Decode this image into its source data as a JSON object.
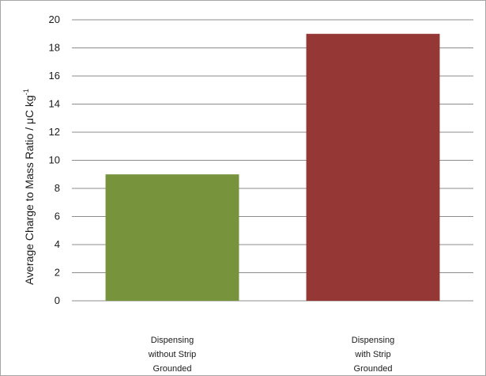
{
  "chart_data": {
    "type": "bar",
    "categories": [
      [
        "Dispensing",
        "without Strip",
        "Grounded"
      ],
      [
        "Dispensing",
        "with Strip",
        "Grounded"
      ]
    ],
    "values": [
      9,
      19
    ],
    "colors": [
      "#77933c",
      "#953735"
    ],
    "ylabel": "Average Charge to Mass Ratio / μC kg",
    "ylabel_superscript": "-1",
    "ylim": [
      0,
      20
    ],
    "yticks": [
      "0",
      "2",
      "4",
      "6",
      "8",
      "10",
      "12",
      "14",
      "16",
      "18",
      "20"
    ],
    "grid": true,
    "legend": "none"
  }
}
